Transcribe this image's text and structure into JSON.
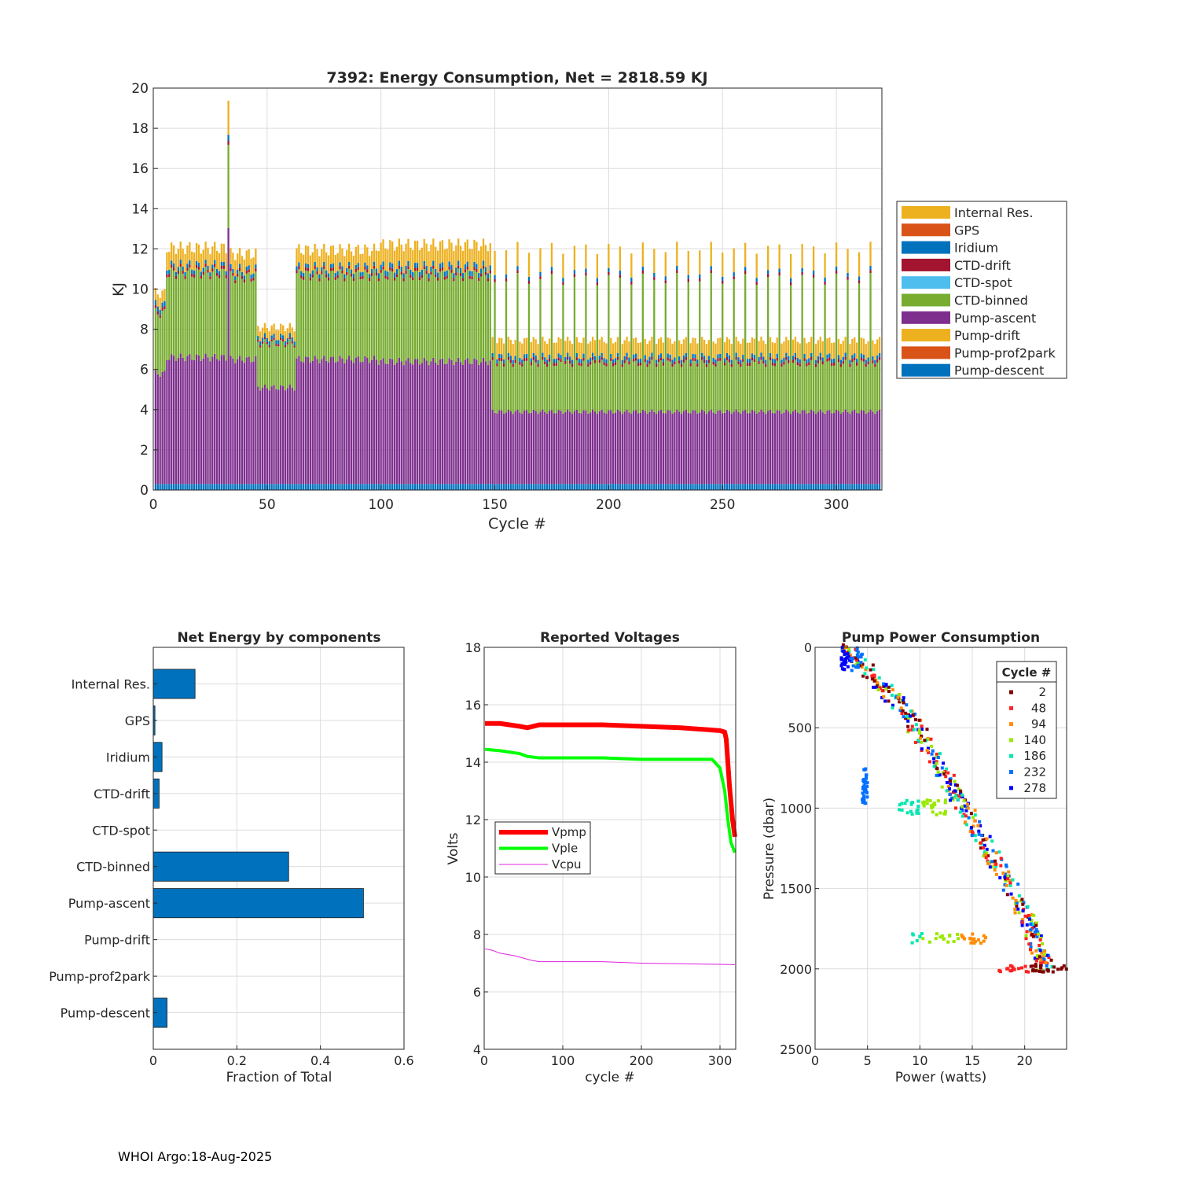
{
  "colors": {
    "internal_res": "#EDB120",
    "gps": "#D95319",
    "iridium": "#0072BD",
    "ctd_drift": "#A2142F",
    "ctd_spot": "#4DBEEE",
    "ctd_binned": "#77AC30",
    "pump_ascent": "#7E2F8E",
    "pump_drift": "#EDB120",
    "pump_prof2park": "#D95319",
    "pump_descent": "#0072BD",
    "vpmp": "#FF0000",
    "vple": "#00FF00",
    "vcpu": "#E020E0",
    "hbar": "#0072BD"
  },
  "footer": "WHOI Argo:18-Aug-2025",
  "chart_data": [
    {
      "id": "energy",
      "type": "bar",
      "stacked": true,
      "title": "7392: Energy Consumption,  Net = 2818.59 KJ",
      "xlabel": "Cycle #",
      "ylabel": "KJ",
      "xlim": [
        0,
        320
      ],
      "ylim": [
        0,
        20
      ],
      "xticks": [
        0,
        50,
        100,
        150,
        200,
        250,
        300
      ],
      "yticks": [
        0,
        2,
        4,
        6,
        8,
        10,
        12,
        14,
        16,
        18,
        20
      ],
      "grid": true,
      "legend_position": "outside-right",
      "legend": [
        "Internal Res.",
        "GPS",
        "Iridium",
        "CTD-drift",
        "CTD-spot",
        "CTD-binned",
        "Pump-ascent",
        "Pump-drift",
        "Pump-prof2park",
        "Pump-descent"
      ],
      "stack_order_bottom_to_top": [
        "Pump-descent",
        "Pump-prof2park",
        "Pump-drift",
        "Pump-ascent",
        "CTD-binned",
        "CTD-spot",
        "CTD-drift",
        "Iridium",
        "GPS",
        "Internal Res."
      ],
      "cycle_range": [
        1,
        319
      ],
      "pump_descent_per_cycle": 0.3,
      "segments": [
        {
          "from": 1,
          "to": 5,
          "pump_ascent": 5.5,
          "ctd_binned": 3.0,
          "ctd_drift": 0.15,
          "iridium": 0.25,
          "internal_res": 0.6
        },
        {
          "from": 6,
          "to": 32,
          "pump_ascent": 6.3,
          "ctd_binned": 4.2,
          "ctd_drift": 0.15,
          "iridium": 0.2,
          "internal_res": 0.9
        },
        {
          "from": 33,
          "to": 33,
          "pump_ascent": 12.9,
          "ctd_binned": 4.2,
          "ctd_drift": 0.2,
          "iridium": 0.3,
          "internal_res": 1.7
        },
        {
          "from": 34,
          "to": 45,
          "pump_ascent": 6.2,
          "ctd_binned": 4.1,
          "ctd_drift": 0.15,
          "iridium": 0.2,
          "internal_res": 0.8
        },
        {
          "from": 46,
          "to": 62,
          "pump_ascent": 4.8,
          "ctd_binned": 2.2,
          "ctd_drift": 0.1,
          "iridium": 0.2,
          "internal_res": 0.5
        },
        {
          "from": 63,
          "to": 98,
          "pump_ascent": 6.2,
          "ctd_binned": 4.2,
          "ctd_drift": 0.15,
          "iridium": 0.2,
          "internal_res": 0.9
        },
        {
          "from": 99,
          "to": 148,
          "pump_ascent": 6.1,
          "ctd_binned": 4.3,
          "ctd_drift": 0.15,
          "iridium": 0.25,
          "internal_res": 1.1
        },
        {
          "from": 149,
          "to": 319,
          "pump_ascent": 3.6,
          "ctd_binned": 2.4,
          "ctd_drift": 0.15,
          "iridium": 0.2,
          "internal_res": 0.8,
          "every_5th_cycle": {
            "pump_ascent": 3.6,
            "ctd_binned": 6.6,
            "ctd_drift": 0.15,
            "iridium": 0.2,
            "internal_res": 1.2
          }
        }
      ]
    },
    {
      "id": "components",
      "type": "bar",
      "orientation": "horizontal",
      "title": "Net Energy by components",
      "xlabel": "Fraction of Total",
      "xlim": [
        0,
        0.6
      ],
      "xticks": [
        0,
        0.2,
        0.4,
        0.6
      ],
      "xtick_labels": [
        "0",
        "0.2",
        "0.4",
        "0.6"
      ],
      "grid": true,
      "categories": [
        "Internal Res.",
        "GPS",
        "Iridium",
        "CTD-drift",
        "CTD-spot",
        "CTD-binned",
        "Pump-ascent",
        "Pump-drift",
        "Pump-prof2park",
        "Pump-descent"
      ],
      "values": [
        0.1,
        0.004,
        0.021,
        0.014,
        0.0,
        0.324,
        0.503,
        0.0,
        0.0,
        0.033
      ]
    },
    {
      "id": "voltages",
      "type": "line",
      "title": "Reported Voltages",
      "xlabel": "cycle #",
      "ylabel": "Volts",
      "xlim": [
        0,
        320
      ],
      "ylim": [
        4,
        18
      ],
      "xticks": [
        0,
        100,
        200,
        300
      ],
      "yticks": [
        4,
        6,
        8,
        10,
        12,
        14,
        16,
        18
      ],
      "grid": true,
      "legend_position": "center-left",
      "series": [
        {
          "name": "Vpmp",
          "x": [
            1,
            20,
            45,
            55,
            70,
            100,
            150,
            200,
            250,
            300,
            306,
            308,
            312,
            316,
            319
          ],
          "values": [
            15.35,
            15.35,
            15.25,
            15.2,
            15.3,
            15.3,
            15.3,
            15.25,
            15.2,
            15.1,
            15.05,
            14.8,
            13.2,
            12.0,
            11.4
          ]
        },
        {
          "name": "Vple",
          "x": [
            1,
            20,
            45,
            55,
            70,
            100,
            150,
            200,
            250,
            290,
            300,
            306,
            310,
            314,
            319
          ],
          "values": [
            14.45,
            14.4,
            14.3,
            14.2,
            14.15,
            14.15,
            14.15,
            14.1,
            14.1,
            14.1,
            13.8,
            13.0,
            12.0,
            11.2,
            10.85
          ]
        },
        {
          "name": "Vcpu",
          "x": [
            1,
            10,
            20,
            40,
            60,
            70,
            100,
            150,
            200,
            250,
            300,
            319
          ],
          "values": [
            7.5,
            7.45,
            7.35,
            7.25,
            7.1,
            7.05,
            7.05,
            7.05,
            7.0,
            6.98,
            6.96,
            6.95
          ]
        }
      ]
    },
    {
      "id": "pump_power",
      "type": "scatter",
      "title": "Pump Power Consumption",
      "xlabel": "Power (watts)",
      "ylabel": "Pressure (dbar)",
      "xlim": [
        0,
        24
      ],
      "ylim": [
        2500,
        0
      ],
      "y_reversed": true,
      "xticks": [
        0,
        5,
        10,
        15,
        20
      ],
      "yticks": [
        0,
        500,
        1000,
        1500,
        2000,
        2500
      ],
      "grid": true,
      "legend_title": "Cycle #",
      "legend_position": "top-right",
      "legend_cycles": [
        "2",
        "48",
        "94",
        "140",
        "186",
        "232",
        "278"
      ],
      "legend_colors": [
        "#800000",
        "#FF2020",
        "#FF8C00",
        "#9AE800",
        "#00E8B0",
        "#0070FF",
        "#0000FF"
      ],
      "trend": {
        "x": [
          3,
          8,
          12,
          16,
          20,
          22
        ],
        "pressure": [
          0,
          350,
          750,
          1200,
          1650,
          2000
        ]
      },
      "clusters": [
        {
          "x": [
            2.5,
            4.5
          ],
          "pressure": [
            0,
            150
          ]
        },
        {
          "x": [
            8,
            12.5
          ],
          "pressure": [
            950,
            1050
          ]
        },
        {
          "x": [
            9,
            16.5
          ],
          "pressure": [
            1780,
            1840
          ]
        },
        {
          "x": [
            17.5,
            24
          ],
          "pressure": [
            1980,
            2020
          ]
        },
        {
          "x": [
            4.5,
            5
          ],
          "pressure": [
            750,
            970
          ]
        }
      ]
    }
  ]
}
